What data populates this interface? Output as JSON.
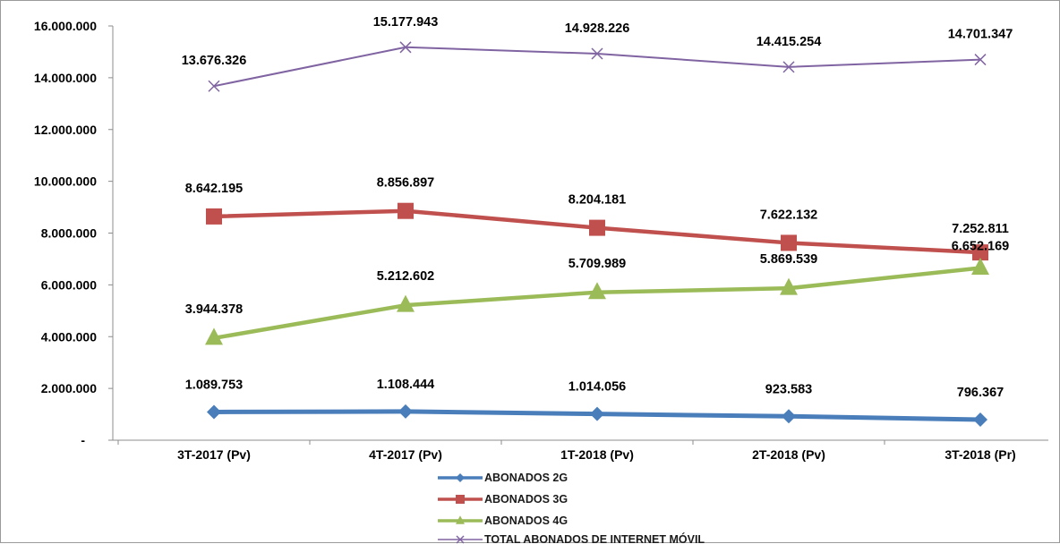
{
  "chart_data": {
    "type": "line",
    "title": "",
    "xlabel": "",
    "ylabel": "",
    "categories": [
      "3T-2017 (Pv)",
      "4T-2017 (Pv)",
      "1T-2018 (Pv)",
      "2T-2018 (Pv)",
      "3T-2018 (Pr)"
    ],
    "ylim": [
      0,
      16000000
    ],
    "yticks": [
      0,
      2000000,
      4000000,
      6000000,
      8000000,
      10000000,
      12000000,
      14000000,
      16000000
    ],
    "ytick_labels": [
      "-",
      "2.000.000",
      "4.000.000",
      "6.000.000",
      "8.000.000",
      "10.000.000",
      "12.000.000",
      "14.000.000",
      "16.000.000"
    ],
    "grid": false,
    "legend_position": "bottom",
    "series": [
      {
        "name": "ABONADOS 2G",
        "color": "#4a7ebb",
        "marker": "diamond",
        "values": [
          1089753,
          1108444,
          1014056,
          923583,
          796367
        ],
        "labels": [
          "1.089.753",
          "1.108.444",
          "1.014.056",
          "923.583",
          "796.367"
        ]
      },
      {
        "name": "ABONADOS 3G",
        "color": "#c0504d",
        "marker": "square",
        "values": [
          8642195,
          8856897,
          8204181,
          7622132,
          7252811
        ],
        "labels": [
          "8.642.195",
          "8.856.897",
          "8.204.181",
          "7.622.132",
          "7.252.811"
        ]
      },
      {
        "name": "ABONADOS 4G",
        "color": "#9bbb59",
        "marker": "triangle",
        "values": [
          3944378,
          5212602,
          5709989,
          5869539,
          6652169
        ],
        "labels": [
          "3.944.378",
          "5.212.602",
          "5.709.989",
          "5.869.539",
          "6.652.169"
        ]
      },
      {
        "name": "TOTAL ABONADOS DE INTERNET MÓVIL",
        "color": "#8064a2",
        "marker": "x",
        "values": [
          13676326,
          15177943,
          14928226,
          14415254,
          14701347
        ],
        "labels": [
          "13.676.326",
          "15.177.943",
          "14.928.226",
          "14.415.254",
          "14.701.347"
        ]
      }
    ]
  }
}
